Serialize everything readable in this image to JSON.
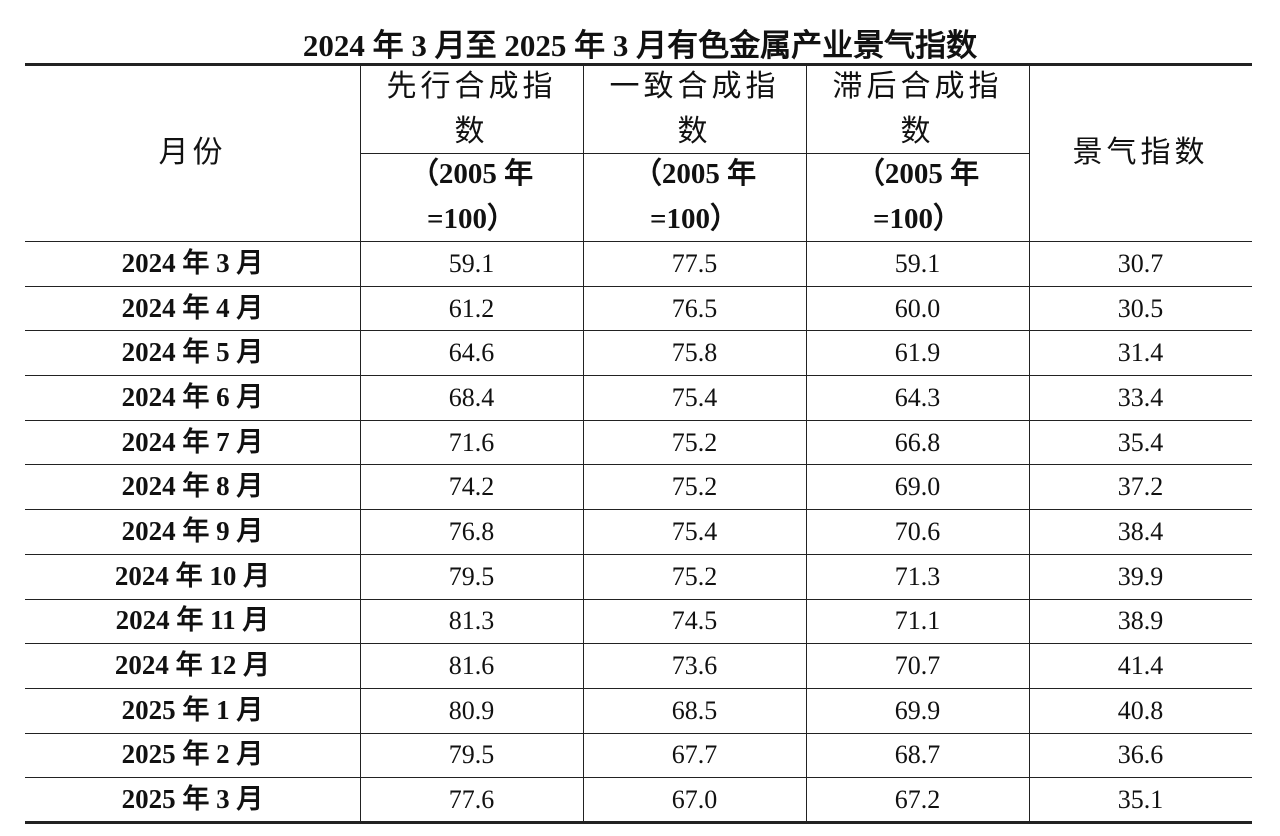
{
  "title": "2024 年 3 月至 2025 年 3 月有色金属产业景气指数",
  "table": {
    "header": [
      "月份",
      "先行合成指数",
      "一致合成指数",
      "滞后合成指数",
      "景气指数"
    ],
    "base_notes": [
      "（2005 年=100）",
      "（2005 年=100）",
      "（2005 年=100）"
    ],
    "rows": [
      [
        "2024 年 3 月",
        "59.1",
        "77.5",
        "59.1",
        "30.7"
      ],
      [
        "2024 年 4 月",
        "61.2",
        "76.5",
        "60.0",
        "30.5"
      ],
      [
        "2024 年 5 月",
        "64.6",
        "75.8",
        "61.9",
        "31.4"
      ],
      [
        "2024 年 6 月",
        "68.4",
        "75.4",
        "64.3",
        "33.4"
      ],
      [
        "2024 年 7 月",
        "71.6",
        "75.2",
        "66.8",
        "35.4"
      ],
      [
        "2024 年 8 月",
        "74.2",
        "75.2",
        "69.0",
        "37.2"
      ],
      [
        "2024 年 9 月",
        "76.8",
        "75.4",
        "70.6",
        "38.4"
      ],
      [
        "2024 年 10 月",
        "79.5",
        "75.2",
        "71.3",
        "39.9"
      ],
      [
        "2024 年 11 月",
        "81.3",
        "74.5",
        "71.1",
        "38.9"
      ],
      [
        "2024 年 12 月",
        "81.6",
        "73.6",
        "70.7",
        "41.4"
      ],
      [
        "2025 年 1 月",
        "80.9",
        "68.5",
        "69.9",
        "40.8"
      ],
      [
        "2025 年 2 月",
        "79.5",
        "67.7",
        "68.7",
        "36.6"
      ],
      [
        "2025 年 3 月",
        "77.6",
        "67.0",
        "67.2",
        "35.1"
      ]
    ]
  }
}
